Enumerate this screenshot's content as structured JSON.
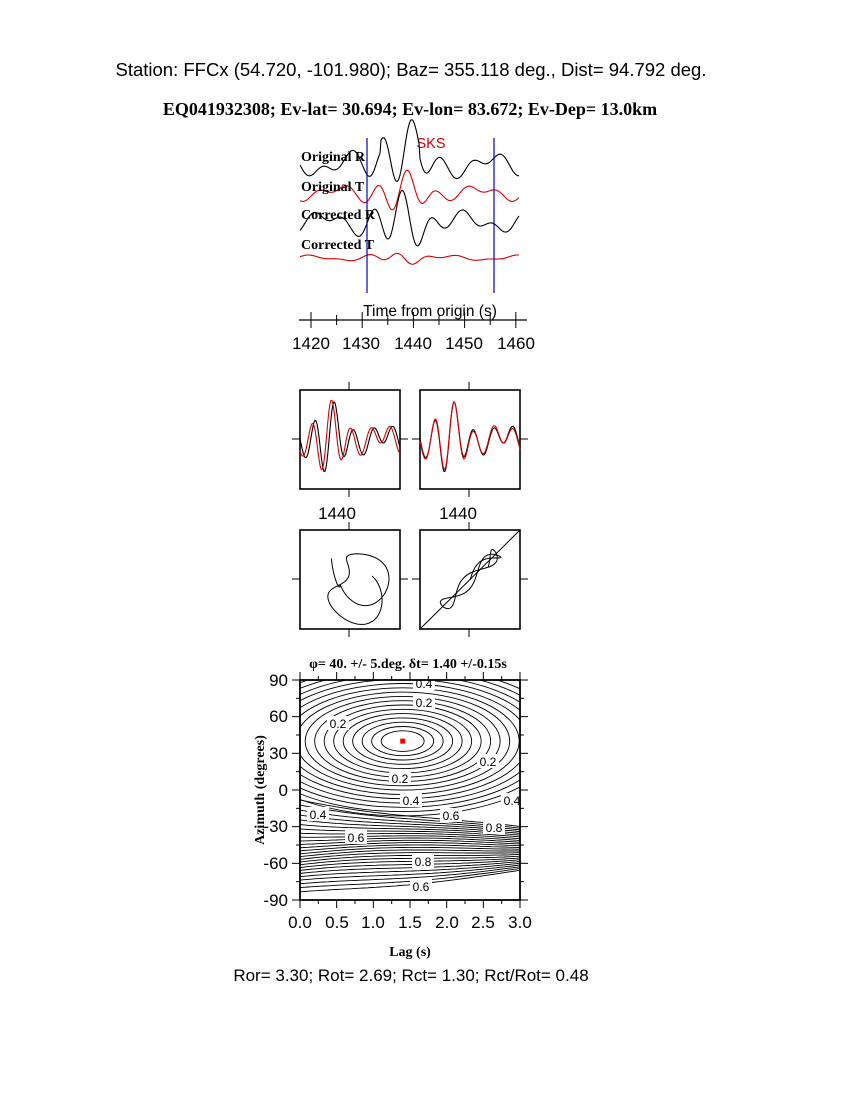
{
  "header": {
    "station_line": "Station: FFCx (54.720, -101.980); Baz=  355.118 deg., Dist=   94.792 deg.",
    "event_line": "EQ041932308; Ev-lat=  30.694; Ev-lon=  83.672; Ev-Dep= 13.0km"
  },
  "traces": {
    "phase_label": "SKS",
    "labels": [
      "Original R",
      "Original T",
      "Corrected R",
      "Corrected T"
    ],
    "xlabel": "Time from origin (s)",
    "ticks": [
      "1420",
      "1430",
      "1440",
      "1450",
      "1460"
    ],
    "window_start": 1431,
    "window_end": 1456
  },
  "waveform_panels": {
    "ticks": [
      "1440",
      "1440"
    ]
  },
  "contour": {
    "title": "φ= 40. +/- 5.deg.  δt= 1.40 +/-0.15s",
    "xlabel": "Lag (s)",
    "ylabel": "Azimuth (degrees)",
    "x_ticks": [
      "0.0",
      "0.5",
      "1.0",
      "1.5",
      "2.0",
      "2.5",
      "3.0"
    ],
    "y_ticks": [
      "90",
      "60",
      "30",
      "0",
      "-30",
      "-60",
      "-90"
    ],
    "contour_labels": [
      "0.4",
      "0.2",
      "0.2",
      "0.2",
      "0.2",
      "0.4",
      "0.4",
      "0.6",
      "0.8",
      "0.4",
      "0.6",
      "0.8",
      "0.6"
    ]
  },
  "footer": {
    "ratios": "Ror= 3.30; Rot= 2.69; Rct= 1.30; Rct/Rot= 0.48"
  },
  "colors": {
    "trace_r": "#000000",
    "trace_t": "#dd0000",
    "window_line": "#0000cc",
    "best_fit_marker": "#ff0000"
  },
  "chart_data": [
    {
      "type": "line",
      "title": "",
      "xlabel": "Time from origin (s)",
      "ylabel": "",
      "xlim": [
        1418,
        1462
      ],
      "series": [
        {
          "name": "Original R"
        },
        {
          "name": "Original T"
        },
        {
          "name": "Corrected R"
        },
        {
          "name": "Corrected T"
        }
      ],
      "window": [
        1431,
        1456
      ],
      "annotations": [
        "SKS"
      ]
    },
    {
      "type": "heatmap",
      "title": "φ= 40. +/- 5.deg.  δt= 1.40 +/-0.15s",
      "xlabel": "Lag (s)",
      "ylabel": "Azimuth (degrees)",
      "xlim": [
        0,
        3.0
      ],
      "ylim": [
        -90,
        90
      ],
      "best_fit": {
        "lag": 1.4,
        "azimuth": 40
      },
      "contour_levels": [
        0.2,
        0.4,
        0.6,
        0.8
      ]
    }
  ]
}
